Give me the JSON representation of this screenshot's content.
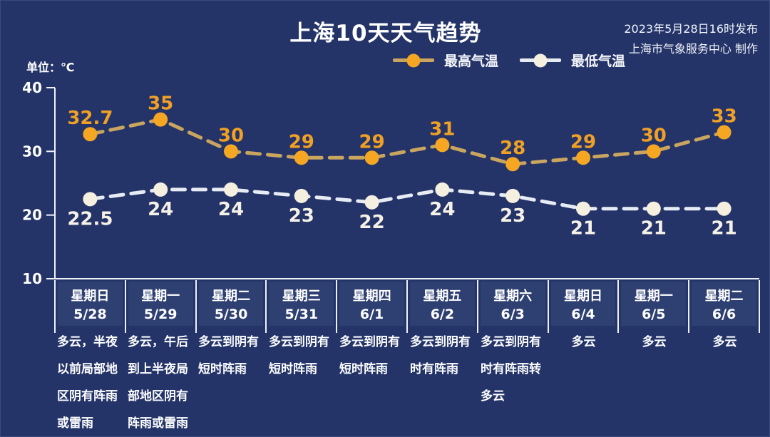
{
  "header": {
    "title": "上海10天天气趋势",
    "publish_line1": "2023年5月28日16时发布",
    "publish_line2": "上海市气象服务中心 制作"
  },
  "unit_label": "单位：℃",
  "legend": {
    "high_label": "最高气温",
    "low_label": "最低气温"
  },
  "colors": {
    "background": "#243468",
    "cell_background": "#2e3f72",
    "axis": "#eef2f8",
    "high_dot": "#f5a623",
    "high_line": "#c9a55f",
    "high_value_label": "#f0a125",
    "low_dot": "#f5efe0",
    "low_line": "#e7ecf4",
    "low_value_label": "#f5f1e6"
  },
  "chart_data": {
    "type": "line",
    "title": "上海10天天气趋势",
    "ylabel": "单位：℃",
    "ylim": [
      10,
      40
    ],
    "yticks": [
      40,
      30,
      20,
      10
    ],
    "grid": false,
    "legend_position": "top",
    "line_style": "dashed",
    "categories": [
      {
        "weekday": "星期日",
        "date": "5/28"
      },
      {
        "weekday": "星期一",
        "date": "5/29"
      },
      {
        "weekday": "星期二",
        "date": "5/30"
      },
      {
        "weekday": "星期三",
        "date": "5/31"
      },
      {
        "weekday": "星期四",
        "date": "6/1"
      },
      {
        "weekday": "星期五",
        "date": "6/2"
      },
      {
        "weekday": "星期六",
        "date": "6/3"
      },
      {
        "weekday": "星期日",
        "date": "6/4"
      },
      {
        "weekday": "星期一",
        "date": "6/5"
      },
      {
        "weekday": "星期二",
        "date": "6/6"
      }
    ],
    "series": [
      {
        "name": "最高气温",
        "values": [
          32.7,
          35,
          30,
          29,
          29,
          31,
          28,
          29,
          30,
          33
        ]
      },
      {
        "name": "最低气温",
        "values": [
          22.5,
          24,
          24,
          23,
          22,
          24,
          23,
          21,
          21,
          21
        ]
      }
    ],
    "descriptions": [
      "多云，半夜以前局部地区阴有阵雨或雷雨",
      "多云，午后到上半夜局部地区阴有阵雨或雷雨",
      "多云到阴有短时阵雨",
      "多云到阴有短时阵雨",
      "多云到阴有短时阵雨",
      "多云到阴有时有阵雨",
      "多云到阴有时有阵雨转多云",
      "多云",
      "多云",
      "多云"
    ]
  }
}
